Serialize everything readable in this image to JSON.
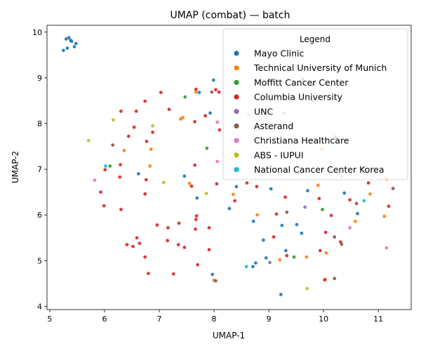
{
  "chart_data": {
    "type": "scatter",
    "title": "UMAP (combat) — batch",
    "xlabel": "UMAP-1",
    "ylabel": "UMAP-2",
    "xlim": [
      4.95,
      11.6
    ],
    "ylim": [
      3.93,
      10.15
    ],
    "xticks": [
      5,
      6,
      7,
      8,
      9,
      10,
      11
    ],
    "yticks": [
      4,
      5,
      6,
      7,
      8,
      9,
      10
    ],
    "grid": false,
    "legend": {
      "title": "Legend",
      "position": "upper-right"
    },
    "series": [
      {
        "name": "Mayo Clinic",
        "color": "#1f77b4",
        "points": [
          [
            5.25,
            9.6
          ],
          [
            5.3,
            9.85
          ],
          [
            5.35,
            9.88
          ],
          [
            5.38,
            9.82
          ],
          [
            5.4,
            9.8
          ],
          [
            5.32,
            9.65
          ],
          [
            5.45,
            9.68
          ],
          [
            5.48,
            9.75
          ],
          [
            7.73,
            8.68
          ],
          [
            7.93,
            8.23
          ],
          [
            7.99,
            8.95
          ],
          [
            7.69,
            6.37
          ],
          [
            7.46,
            6.85
          ],
          [
            6.62,
            6.9
          ],
          [
            8.28,
            6.14
          ],
          [
            8.41,
            6.62
          ],
          [
            8.72,
            5.86
          ],
          [
            9.04,
            6.57
          ],
          [
            9.31,
            5.22
          ],
          [
            9.51,
            5.79
          ],
          [
            9.6,
            5.6
          ],
          [
            9.24,
            5.77
          ],
          [
            8.9,
            5.45
          ],
          [
            8.95,
            5.06
          ],
          [
            8.76,
            4.95
          ],
          [
            8.71,
            4.87
          ],
          [
            9.22,
            4.26
          ],
          [
            7.97,
            4.7
          ],
          [
            9.71,
            6.53
          ],
          [
            10.38,
            6.48
          ],
          [
            10.62,
            6.03
          ],
          [
            10.22,
            7.71
          ]
        ]
      },
      {
        "name": "Technical University of Munich",
        "color": "#ff7f0e",
        "points": [
          [
            6.36,
            7.41
          ],
          [
            6.85,
            7.44
          ],
          [
            6.83,
            7.07
          ],
          [
            7.39,
            8.1
          ],
          [
            7.43,
            8.13
          ],
          [
            7.55,
            6.69
          ],
          [
            7.67,
            8.69
          ],
          [
            8.35,
            6.45
          ],
          [
            8.79,
            6.0
          ],
          [
            9.2,
            5.02
          ],
          [
            9.69,
            5.08
          ],
          [
            9.97,
            7.43
          ],
          [
            9.9,
            6.65
          ],
          [
            10.05,
            5.17
          ],
          [
            10.03,
            4.59
          ],
          [
            10.58,
            5.86
          ],
          [
            10.85,
            6.46
          ],
          [
            11.11,
            5.97
          ],
          [
            11.15,
            6.79
          ],
          [
            8.0,
            4.57
          ]
        ]
      },
      {
        "name": "Moffitt Cancer Center",
        "color": "#2ca02c",
        "points": [
          [
            6.1,
            7.07
          ],
          [
            7.47,
            8.58
          ],
          [
            7.87,
            7.46
          ],
          [
            9.46,
            5.08
          ],
          [
            9.98,
            6.12
          ]
        ]
      },
      {
        "name": "Columbia University",
        "color": "#d62728",
        "points": [
          [
            6.3,
            8.27
          ],
          [
            6.58,
            8.27
          ],
          [
            6.74,
            8.49
          ],
          [
            7.03,
            8.68
          ],
          [
            7.18,
            8.31
          ],
          [
            7.67,
            8.75
          ],
          [
            6.54,
            7.92
          ],
          [
            6.44,
            7.72
          ],
          [
            6.88,
            7.81
          ],
          [
            6.77,
            7.61
          ],
          [
            7.65,
            8.04
          ],
          [
            7.84,
            8.17
          ],
          [
            8.1,
            7.86
          ],
          [
            8.03,
            8.74
          ],
          [
            8.09,
            8.69
          ],
          [
            6.29,
            7.1
          ],
          [
            6.28,
            6.83
          ],
          [
            6.01,
            6.99
          ],
          [
            6.76,
            6.77
          ],
          [
            6.74,
            6.46
          ],
          [
            5.93,
            6.5
          ],
          [
            5.99,
            6.2
          ],
          [
            6.3,
            6.12
          ],
          [
            6.96,
            5.78
          ],
          [
            7.16,
            5.72
          ],
          [
            7.36,
            5.82
          ],
          [
            7.68,
            5.98
          ],
          [
            7.67,
            5.9
          ],
          [
            7.66,
            5.69
          ],
          [
            7.91,
            5.72
          ],
          [
            7.59,
            6.63
          ],
          [
            7.65,
            7.09
          ],
          [
            8.05,
            6.68
          ],
          [
            8.38,
            6.31
          ],
          [
            8.6,
            6.7
          ],
          [
            8.78,
            6.62
          ],
          [
            9.14,
            6.02
          ],
          [
            9.3,
            6.39
          ],
          [
            9.09,
            5.52
          ],
          [
            9.8,
            8.5
          ],
          [
            9.8,
            8.85
          ],
          [
            9.62,
            8.97
          ],
          [
            9.92,
            6.36
          ],
          [
            10.04,
            5.62
          ],
          [
            10.14,
            5.99
          ],
          [
            10.48,
            6.33
          ],
          [
            10.82,
            6.7
          ],
          [
            11.19,
            6.19
          ],
          [
            6.59,
            5.5
          ],
          [
            6.64,
            5.38
          ],
          [
            6.52,
            5.31
          ],
          [
            6.41,
            5.35
          ],
          [
            7.15,
            5.44
          ],
          [
            7.35,
            5.35
          ],
          [
            7.46,
            5.29
          ],
          [
            7.91,
            5.24
          ],
          [
            6.74,
            5.08
          ],
          [
            6.8,
            4.72
          ],
          [
            7.26,
            4.71
          ],
          [
            7.7,
            4.91
          ],
          [
            9.33,
            5.11
          ],
          [
            10.02,
            4.58
          ],
          [
            9.94,
            5.22
          ],
          [
            10.31,
            5.41
          ]
        ]
      },
      {
        "name": "UNC",
        "color": "#9467bd",
        "points": [
          [
            9.66,
            6.17
          ],
          [
            9.02,
            4.96
          ],
          [
            9.84,
            8.88
          ]
        ]
      },
      {
        "name": "Asterand",
        "color": "#8c564b",
        "points": [
          [
            6.15,
            7.53
          ],
          [
            7.96,
            8.69
          ],
          [
            8.03,
            4.56
          ],
          [
            9.33,
            6.06
          ],
          [
            10.2,
            5.52
          ],
          [
            10.2,
            4.61
          ],
          [
            10.33,
            5.36
          ],
          [
            10.6,
            6.25
          ],
          [
            11.27,
            6.58
          ]
        ]
      },
      {
        "name": "Christiana Healthcare",
        "color": "#e377c2",
        "points": [
          [
            5.82,
            6.76
          ],
          [
            8.06,
            7.17
          ],
          [
            8.06,
            8.03
          ],
          [
            8.63,
            8.2
          ],
          [
            9.28,
            8.22
          ],
          [
            9.53,
            8.84
          ],
          [
            10.33,
            6.84
          ],
          [
            10.48,
            5.72
          ],
          [
            11.15,
            5.28
          ]
        ]
      },
      {
        "name": "ABS - IUPUI",
        "color": "#bcbd22",
        "points": [
          [
            5.71,
            7.63
          ],
          [
            6.16,
            8.08
          ],
          [
            6.88,
            7.95
          ],
          [
            7.08,
            6.71
          ],
          [
            7.86,
            6.47
          ],
          [
            8.38,
            7.37
          ],
          [
            9.7,
            4.39
          ]
        ]
      },
      {
        "name": "National Cancer Center Korea",
        "color": "#17becf",
        "points": [
          [
            6.02,
            7.07
          ],
          [
            8.59,
            4.87
          ],
          [
            10.74,
            6.31
          ]
        ]
      }
    ]
  }
}
